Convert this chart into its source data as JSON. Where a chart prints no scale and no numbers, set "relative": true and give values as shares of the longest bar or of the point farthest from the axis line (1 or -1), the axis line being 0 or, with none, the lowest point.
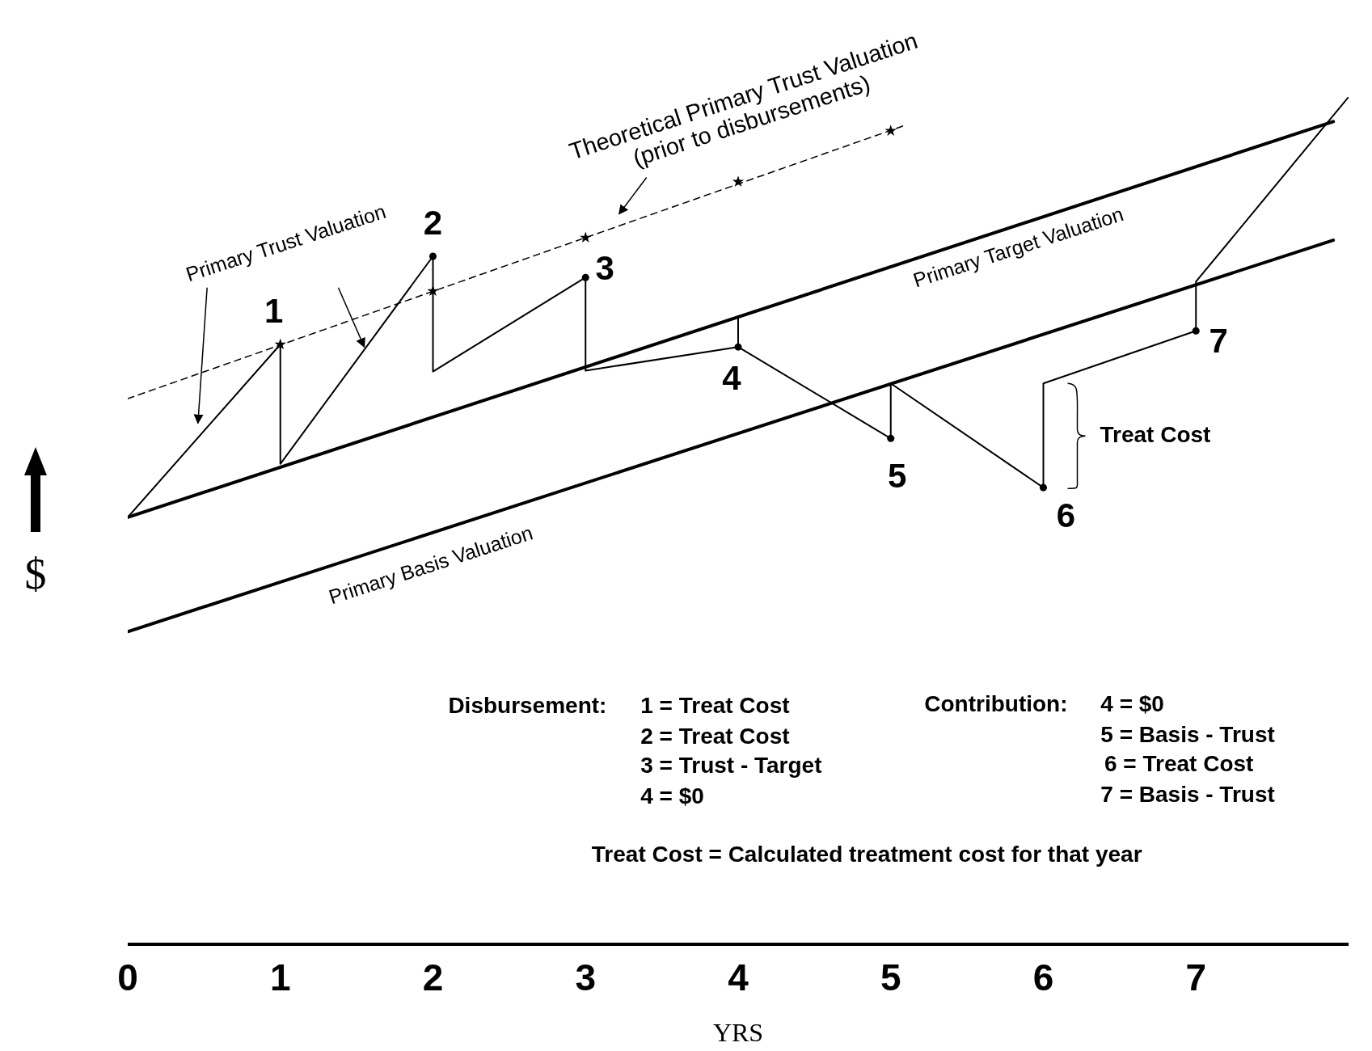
{
  "chart_data": {
    "type": "line",
    "relative": true,
    "xlabel": "YRS",
    "ylabel": "$",
    "xlim": [
      0,
      8
    ],
    "xticks": [
      0,
      1,
      2,
      3,
      4,
      5,
      6,
      7
    ],
    "grid": false,
    "legend": false,
    "series": [
      {
        "name": "Primary Trust Valuation",
        "color": "#000000",
        "line_style": "solid",
        "marker": "none",
        "x": [
          0,
          1,
          1,
          2,
          2,
          3,
          3,
          4,
          4,
          4,
          5,
          5,
          6,
          6,
          7,
          7,
          8
        ],
        "values": [
          0.504,
          0.708,
          0.567,
          0.812,
          0.676,
          0.787,
          0.677,
          0.705,
          0.741,
          0.705,
          0.597,
          0.662,
          0.539,
          0.662,
          0.724,
          0.782,
          1
        ]
      },
      {
        "name": "Primary Target Valuation",
        "color": "#000000",
        "line_style": "solid",
        "marker": "none",
        "x": [
          0,
          7.9
        ],
        "values": [
          0.504,
          0.971
        ]
      },
      {
        "name": "Primary Basis Valuation",
        "color": "#000000",
        "line_style": "solid",
        "marker": "none",
        "x": [
          0,
          7.9
        ],
        "values": [
          0.369,
          0.831
        ]
      },
      {
        "name": "Theoretical Primary Trust Valuation (prior to disbursements)",
        "color": "#000000",
        "line_style": "dashed",
        "marker": "none",
        "x": [
          0,
          5.1
        ],
        "values": [
          0.644,
          0.967
        ]
      },
      {
        "type": "scatter",
        "color": "#000000",
        "marker": "star",
        "x": [
          1,
          2,
          3,
          4,
          5
        ],
        "values": [
          0.708,
          0.771,
          0.834,
          0.9,
          0.96
        ]
      },
      {
        "type": "scatter",
        "color": "#000000",
        "marker": "circle",
        "x": [
          2,
          3,
          4,
          5,
          6,
          7
        ],
        "values": [
          0.812,
          0.787,
          0.705,
          0.597,
          0.539,
          0.724
        ]
      }
    ],
    "annotations": [
      {
        "text": "1",
        "x": 1,
        "y": 0.708
      },
      {
        "text": "2",
        "x": 2,
        "y": 0.812
      },
      {
        "text": "3",
        "x": 3,
        "y": 0.787
      },
      {
        "text": "4",
        "x": 4,
        "y": 0.705
      },
      {
        "text": "5",
        "x": 5,
        "y": 0.597
      },
      {
        "text": "6",
        "x": 6,
        "y": 0.539
      },
      {
        "text": "7",
        "x": 7,
        "y": 0.724
      },
      {
        "text": "Treat Cost",
        "x": 6,
        "y": 0.6
      },
      "Disbursement:",
      "1 = Treat Cost",
      "2 = Treat Cost",
      "3 = Trust - Target",
      "4 = $0",
      "Contribution:",
      "4 = $0",
      "5 = Basis - Trust",
      "6 = Treat Cost",
      "7 = Basis - Trust",
      "Treat Cost = Calculated treatment cost for that year"
    ]
  }
}
